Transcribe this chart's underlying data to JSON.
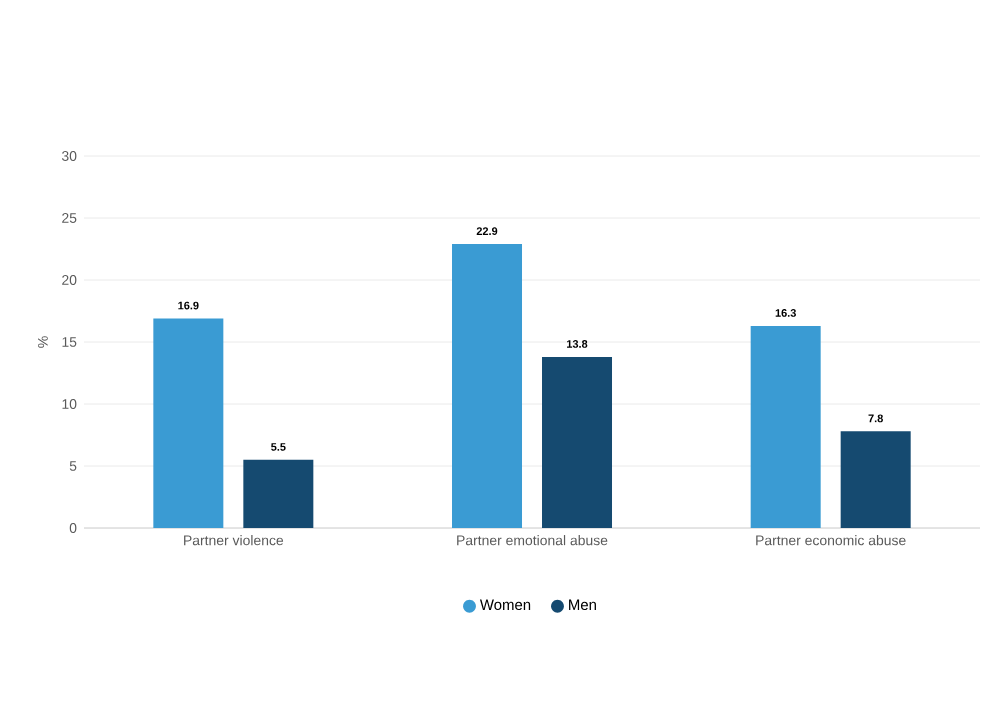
{
  "chart_data": {
    "type": "bar",
    "ylabel": "%",
    "categories": [
      "Partner violence",
      "Partner emotional abuse",
      "Partner economic abuse"
    ],
    "series": [
      {
        "name": "Women",
        "color": "#3a9bd3",
        "values": [
          16.9,
          22.9,
          16.3
        ]
      },
      {
        "name": "Men",
        "color": "#154a70",
        "values": [
          5.5,
          13.8,
          7.8
        ]
      }
    ],
    "ylim": [
      0,
      30
    ],
    "yticks": [
      0,
      5,
      10,
      15,
      20,
      25,
      30
    ],
    "grid": "y",
    "legend": "bottom",
    "data_labels": true
  }
}
